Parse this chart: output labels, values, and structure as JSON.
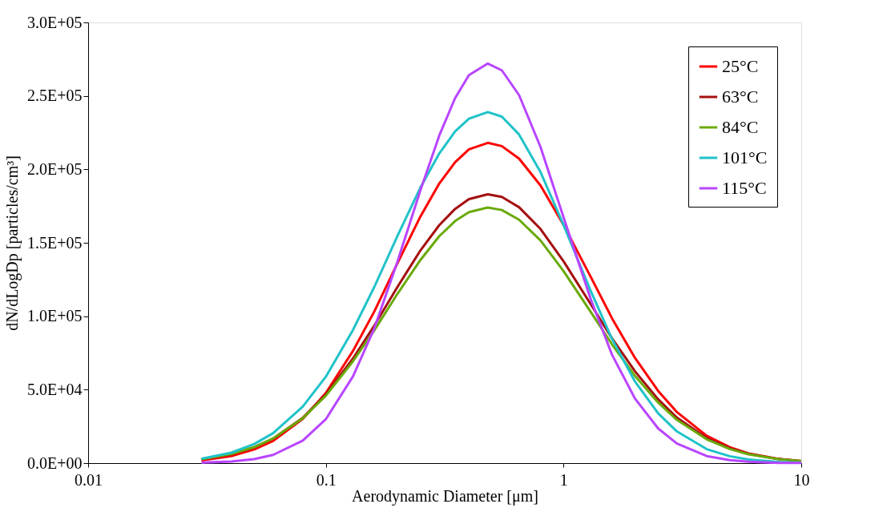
{
  "chart_data": {
    "type": "line",
    "xlabel": "Aerodynamic  Diameter [μm]",
    "ylabel": "dN/dLogDp [particles/cm³]",
    "x": [
      0.03,
      0.04,
      0.05,
      0.06,
      0.08,
      0.1,
      0.13,
      0.16,
      0.2,
      0.25,
      0.3,
      0.35,
      0.4,
      0.48,
      0.55,
      0.65,
      0.8,
      1,
      1.3,
      1.6,
      2,
      2.5,
      3,
      4,
      5,
      6,
      8,
      10
    ],
    "series": [
      {
        "name": "25°C",
        "color": "#ff0000",
        "values": [
          1900,
          4800,
          9400,
          15100,
          30100,
          47700,
          76300,
          103300,
          136000,
          167900,
          190300,
          204900,
          213600,
          218000,
          215800,
          207300,
          189000,
          162200,
          126900,
          98500,
          71500,
          49100,
          34700,
          18600,
          10800,
          6600,
          2900,
          1400
        ]
      },
      {
        "name": "63°C",
        "color": "#a50f0f",
        "values": [
          2600,
          6000,
          10800,
          16600,
          30900,
          46800,
          71200,
          93700,
          119900,
          144800,
          162000,
          173100,
          179700,
          183000,
          181200,
          174200,
          159400,
          137400,
          108300,
          84900,
          62400,
          43400,
          30900,
          17000,
          10100,
          6300,
          2800,
          1400
        ]
      },
      {
        "name": "84°C",
        "color": "#6aaa0a",
        "values": [
          2700,
          6200,
          10900,
          16800,
          30600,
          45900,
          69300,
          90500,
          115200,
          138300,
          154500,
          164800,
          170900,
          174000,
          172300,
          165700,
          151600,
          130700,
          103000,
          80700,
          59300,
          41200,
          29400,
          16200,
          9600,
          6000,
          2700,
          1300
        ]
      },
      {
        "name": "101°C",
        "color": "#1fc3c8",
        "values": [
          3000,
          7100,
          13000,
          20400,
          38500,
          58800,
          90600,
          120000,
          154600,
          187600,
          210800,
          225900,
          234500,
          239000,
          235900,
          223700,
          198100,
          162100,
          117300,
          84400,
          55400,
          33900,
          21500,
          9500,
          4700,
          2500,
          800,
          300
        ]
      },
      {
        "name": "115°C",
        "color": "#b845ff",
        "values": [
          300,
          1100,
          2700,
          5600,
          15300,
          29900,
          59000,
          91900,
          137100,
          185800,
          223000,
          248600,
          264100,
          272000,
          267400,
          250500,
          215200,
          167300,
          111800,
          73700,
          43800,
          23600,
          13300,
          4800,
          2000,
          900,
          200,
          100
        ]
      }
    ],
    "log": "x",
    "xlim": [
      0.01,
      10
    ],
    "xticks": [
      0.01,
      0.1,
      1,
      10
    ],
    "ylim": [
      0,
      300000
    ],
    "yticks": [
      {
        "value": 0,
        "label": "0.0E+00"
      },
      {
        "value": 50000,
        "label": "5.0E+04"
      },
      {
        "value": 100000,
        "label": "1.0E+05"
      },
      {
        "value": 150000,
        "label": "1.5E+05"
      },
      {
        "value": 200000,
        "label": "2.0E+05"
      },
      {
        "value": 250000,
        "label": "2.5E+05"
      },
      {
        "value": 300000,
        "label": "3.0E+05"
      }
    ],
    "legend": "top right",
    "grid": false,
    "marker": "none",
    "line_style": "solid"
  }
}
